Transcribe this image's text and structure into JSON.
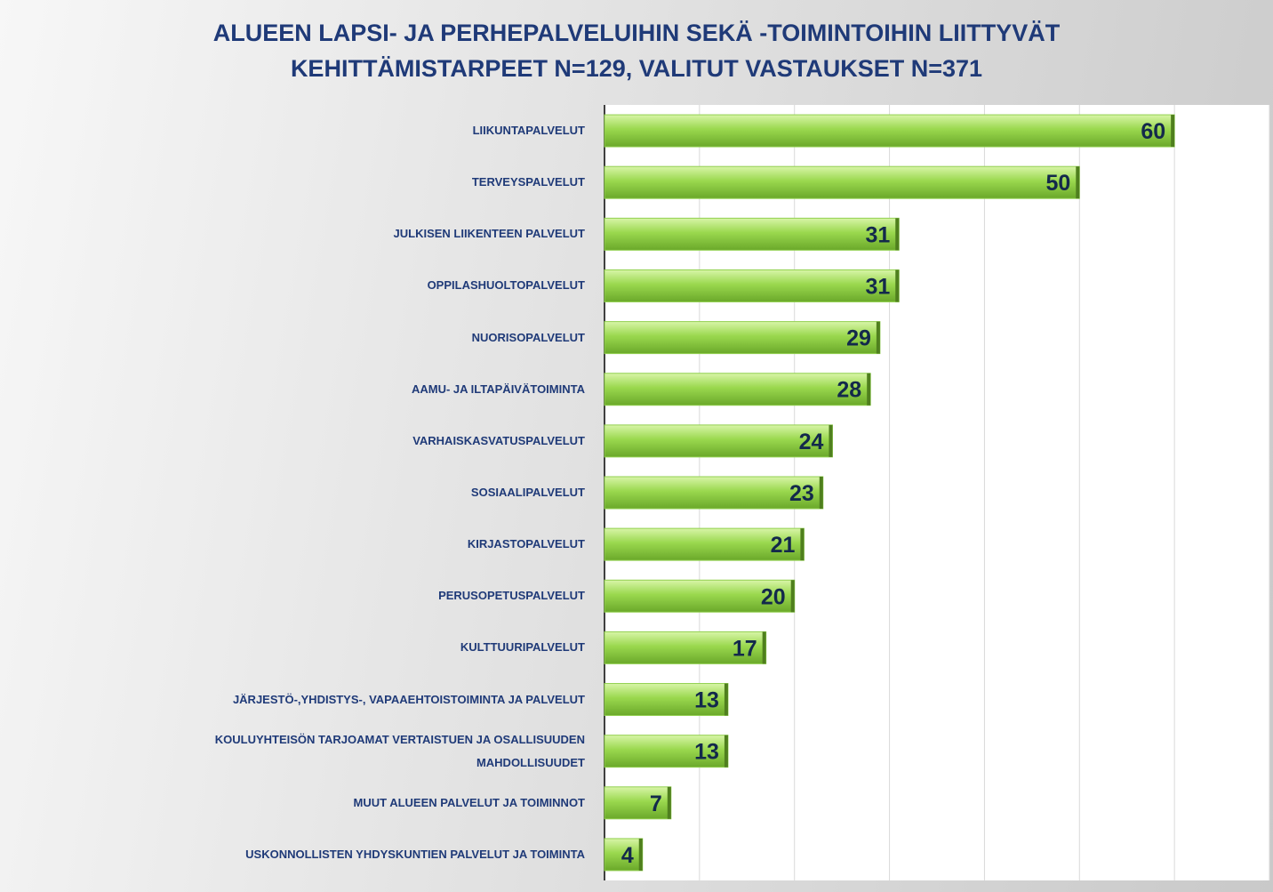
{
  "chart_data": {
    "type": "barh",
    "title": [
      "ALUEEN LAPSI- JA PERHEPALVELUIHIN SEKÄ -TOIMINTOIHIN LIITTYVÄT",
      "KEHITTÄMISTARPEET N=129, VALITUT VASTAUKSET N=371"
    ],
    "categories": [
      "LIIKUNTAPALVELUT",
      "TERVEYSPALVELUT",
      "JULKISEN LIIKENTEEN PALVELUT",
      "OPPILASHUOLTOPALVELUT",
      "NUORISOPALVELUT",
      "AAMU- JA ILTAPÄIVÄTOIMINTA",
      "VARHAISKASVATUSPALVELUT",
      "SOSIAALIPALVELUT",
      "KIRJASTOPALVELUT",
      "PERUSOPETUSPALVELUT",
      "KULTTUURIPALVELUT",
      "JÄRJESTÖ-,YHDISTYS-, VAPAAEHTOISTOIMINTA JA PALVELUT",
      "KOULUYHTEISÖN TARJOAMAT VERTAISTUEN JA OSALLISUUDEN MAHDOLLISUUDET",
      "MUUT ALUEEN PALVELUT JA TOIMINNOT",
      "USKONNOLLISTEN YHDYSKUNTIEN PALVELUT JA TOIMINTA"
    ],
    "values": [
      60,
      50,
      31,
      31,
      29,
      28,
      24,
      23,
      21,
      20,
      17,
      13,
      13,
      7,
      4
    ],
    "color": "#92d050",
    "xlim": [
      0,
      70
    ],
    "xticks": [
      0,
      10,
      20,
      30,
      40,
      50,
      60,
      70
    ],
    "grid": true
  }
}
